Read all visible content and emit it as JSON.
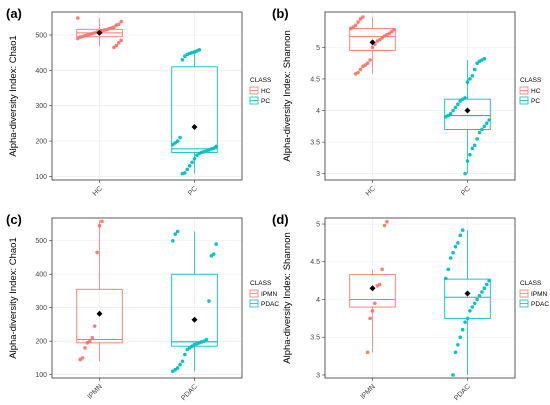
{
  "colors": {
    "red": "#F8766D",
    "teal": "#00BFC4",
    "grid": "#EBEBEB",
    "frame": "#333333",
    "mean": "#000000"
  },
  "chart_data": [
    {
      "panel": "(a)",
      "type": "box",
      "ylabel": "Alpha-diversity Index: Chao1",
      "categories": [
        "HC",
        "PC"
      ],
      "yticks": [
        100,
        200,
        300,
        400,
        500
      ],
      "ylim": [
        90,
        565
      ],
      "legend_title": "CLASS",
      "legend_position": "right",
      "series": [
        {
          "name": "HC",
          "color": "red",
          "box": {
            "q1": 495,
            "median": 506,
            "q3": 516,
            "whisker_low": 468,
            "whisker_high": 548
          },
          "mean": 506,
          "points": [
            548,
            538,
            530,
            528,
            522,
            520,
            518,
            515,
            514,
            512,
            510,
            508,
            506,
            504,
            502,
            500,
            498,
            496,
            494,
            490,
            485,
            478,
            470,
            465
          ]
        },
        {
          "name": "PC",
          "color": "teal",
          "box": {
            "q1": 168,
            "median": 178,
            "q3": 410,
            "whisker_low": 108,
            "whisker_high": 458
          },
          "mean": 240,
          "points": [
            458,
            455,
            452,
            450,
            448,
            445,
            440,
            430,
            210,
            200,
            195,
            190,
            185,
            180,
            178,
            175,
            172,
            170,
            168,
            165,
            160,
            150,
            140,
            130,
            120,
            110,
            108
          ]
        }
      ]
    },
    {
      "panel": "(b)",
      "type": "box",
      "ylabel": "Alpha-diversity Index: Shannon",
      "categories": [
        "HC",
        "PC"
      ],
      "yticks": [
        3.0,
        3.5,
        4.0,
        4.5,
        5.0
      ],
      "ylim": [
        2.9,
        5.56
      ],
      "legend_title": "CLASS",
      "legend_position": "right",
      "series": [
        {
          "name": "HC",
          "color": "red",
          "box": {
            "q1": 4.95,
            "median": 5.17,
            "q3": 5.3,
            "whisker_low": 4.58,
            "whisker_high": 5.48
          },
          "mean": 5.08,
          "points": [
            5.48,
            5.45,
            5.4,
            5.35,
            5.32,
            5.3,
            5.28,
            5.25,
            5.22,
            5.2,
            5.18,
            5.15,
            5.12,
            5.1,
            5.05,
            5.0,
            4.8,
            4.75,
            4.72,
            4.7,
            4.65,
            4.6,
            4.58
          ]
        },
        {
          "name": "PC",
          "color": "teal",
          "box": {
            "q1": 3.7,
            "median": 3.92,
            "q3": 4.18,
            "whisker_low": 3.0,
            "whisker_high": 4.8
          },
          "mean": 4.0,
          "points": [
            4.82,
            4.8,
            4.78,
            4.75,
            4.65,
            4.55,
            4.5,
            4.45,
            4.2,
            4.18,
            4.15,
            4.1,
            4.05,
            4.0,
            3.95,
            3.92,
            3.9,
            3.85,
            3.8,
            3.75,
            3.7,
            3.65,
            3.55,
            3.45,
            3.4,
            3.3,
            3.2,
            3.0
          ]
        }
      ]
    },
    {
      "panel": "(c)",
      "type": "box",
      "ylabel": "Alpha-diversity Index: Chao1",
      "categories": [
        "IPMN",
        "PDAC"
      ],
      "yticks": [
        100,
        200,
        300,
        400,
        500
      ],
      "ylim": [
        90,
        568
      ],
      "legend_title": "CLASS",
      "legend_position": "right",
      "series": [
        {
          "name": "IPMN",
          "color": "red",
          "box": {
            "q1": 195,
            "median": 205,
            "q3": 355,
            "whisker_low": 140,
            "whisker_high": 560
          },
          "mean": 282,
          "points": [
            558,
            545,
            465,
            245,
            210,
            200,
            195,
            180,
            150,
            145
          ]
        },
        {
          "name": "PDAC",
          "color": "teal",
          "box": {
            "q1": 185,
            "median": 198,
            "q3": 400,
            "whisker_low": 110,
            "whisker_high": 528
          },
          "mean": 264,
          "points": [
            528,
            520,
            500,
            490,
            460,
            455,
            320,
            205,
            200,
            198,
            195,
            192,
            190,
            185,
            180,
            175,
            160,
            140,
            130,
            120,
            115,
            110
          ]
        }
      ]
    },
    {
      "panel": "(d)",
      "type": "box",
      "ylabel": "Alpha-diversity Index: Shannon",
      "categories": [
        "IPMN",
        "PDAC"
      ],
      "yticks": [
        3.0,
        3.5,
        4.0,
        4.5,
        5.0
      ],
      "ylim": [
        2.96,
        5.08
      ],
      "legend_title": "CLASS",
      "legend_position": "right",
      "series": [
        {
          "name": "IPMN",
          "color": "red",
          "box": {
            "q1": 3.9,
            "median": 4.0,
            "q3": 4.33,
            "whisker_low": 3.3,
            "whisker_high": 4.4
          },
          "mean": 4.15,
          "points": [
            5.03,
            4.98,
            4.4,
            4.2,
            4.18,
            3.95,
            3.85,
            3.75,
            3.3
          ]
        },
        {
          "name": "PDAC",
          "color": "teal",
          "box": {
            "q1": 3.75,
            "median": 4.03,
            "q3": 4.27,
            "whisker_low": 3.0,
            "whisker_high": 4.92
          },
          "mean": 4.08,
          "points": [
            4.92,
            4.85,
            4.75,
            4.7,
            4.62,
            4.55,
            4.4,
            4.28,
            4.25,
            4.2,
            4.15,
            4.1,
            4.05,
            4.0,
            3.95,
            3.9,
            3.85,
            3.75,
            3.7,
            3.6,
            3.5,
            3.4,
            3.3,
            3.0
          ]
        }
      ]
    }
  ]
}
